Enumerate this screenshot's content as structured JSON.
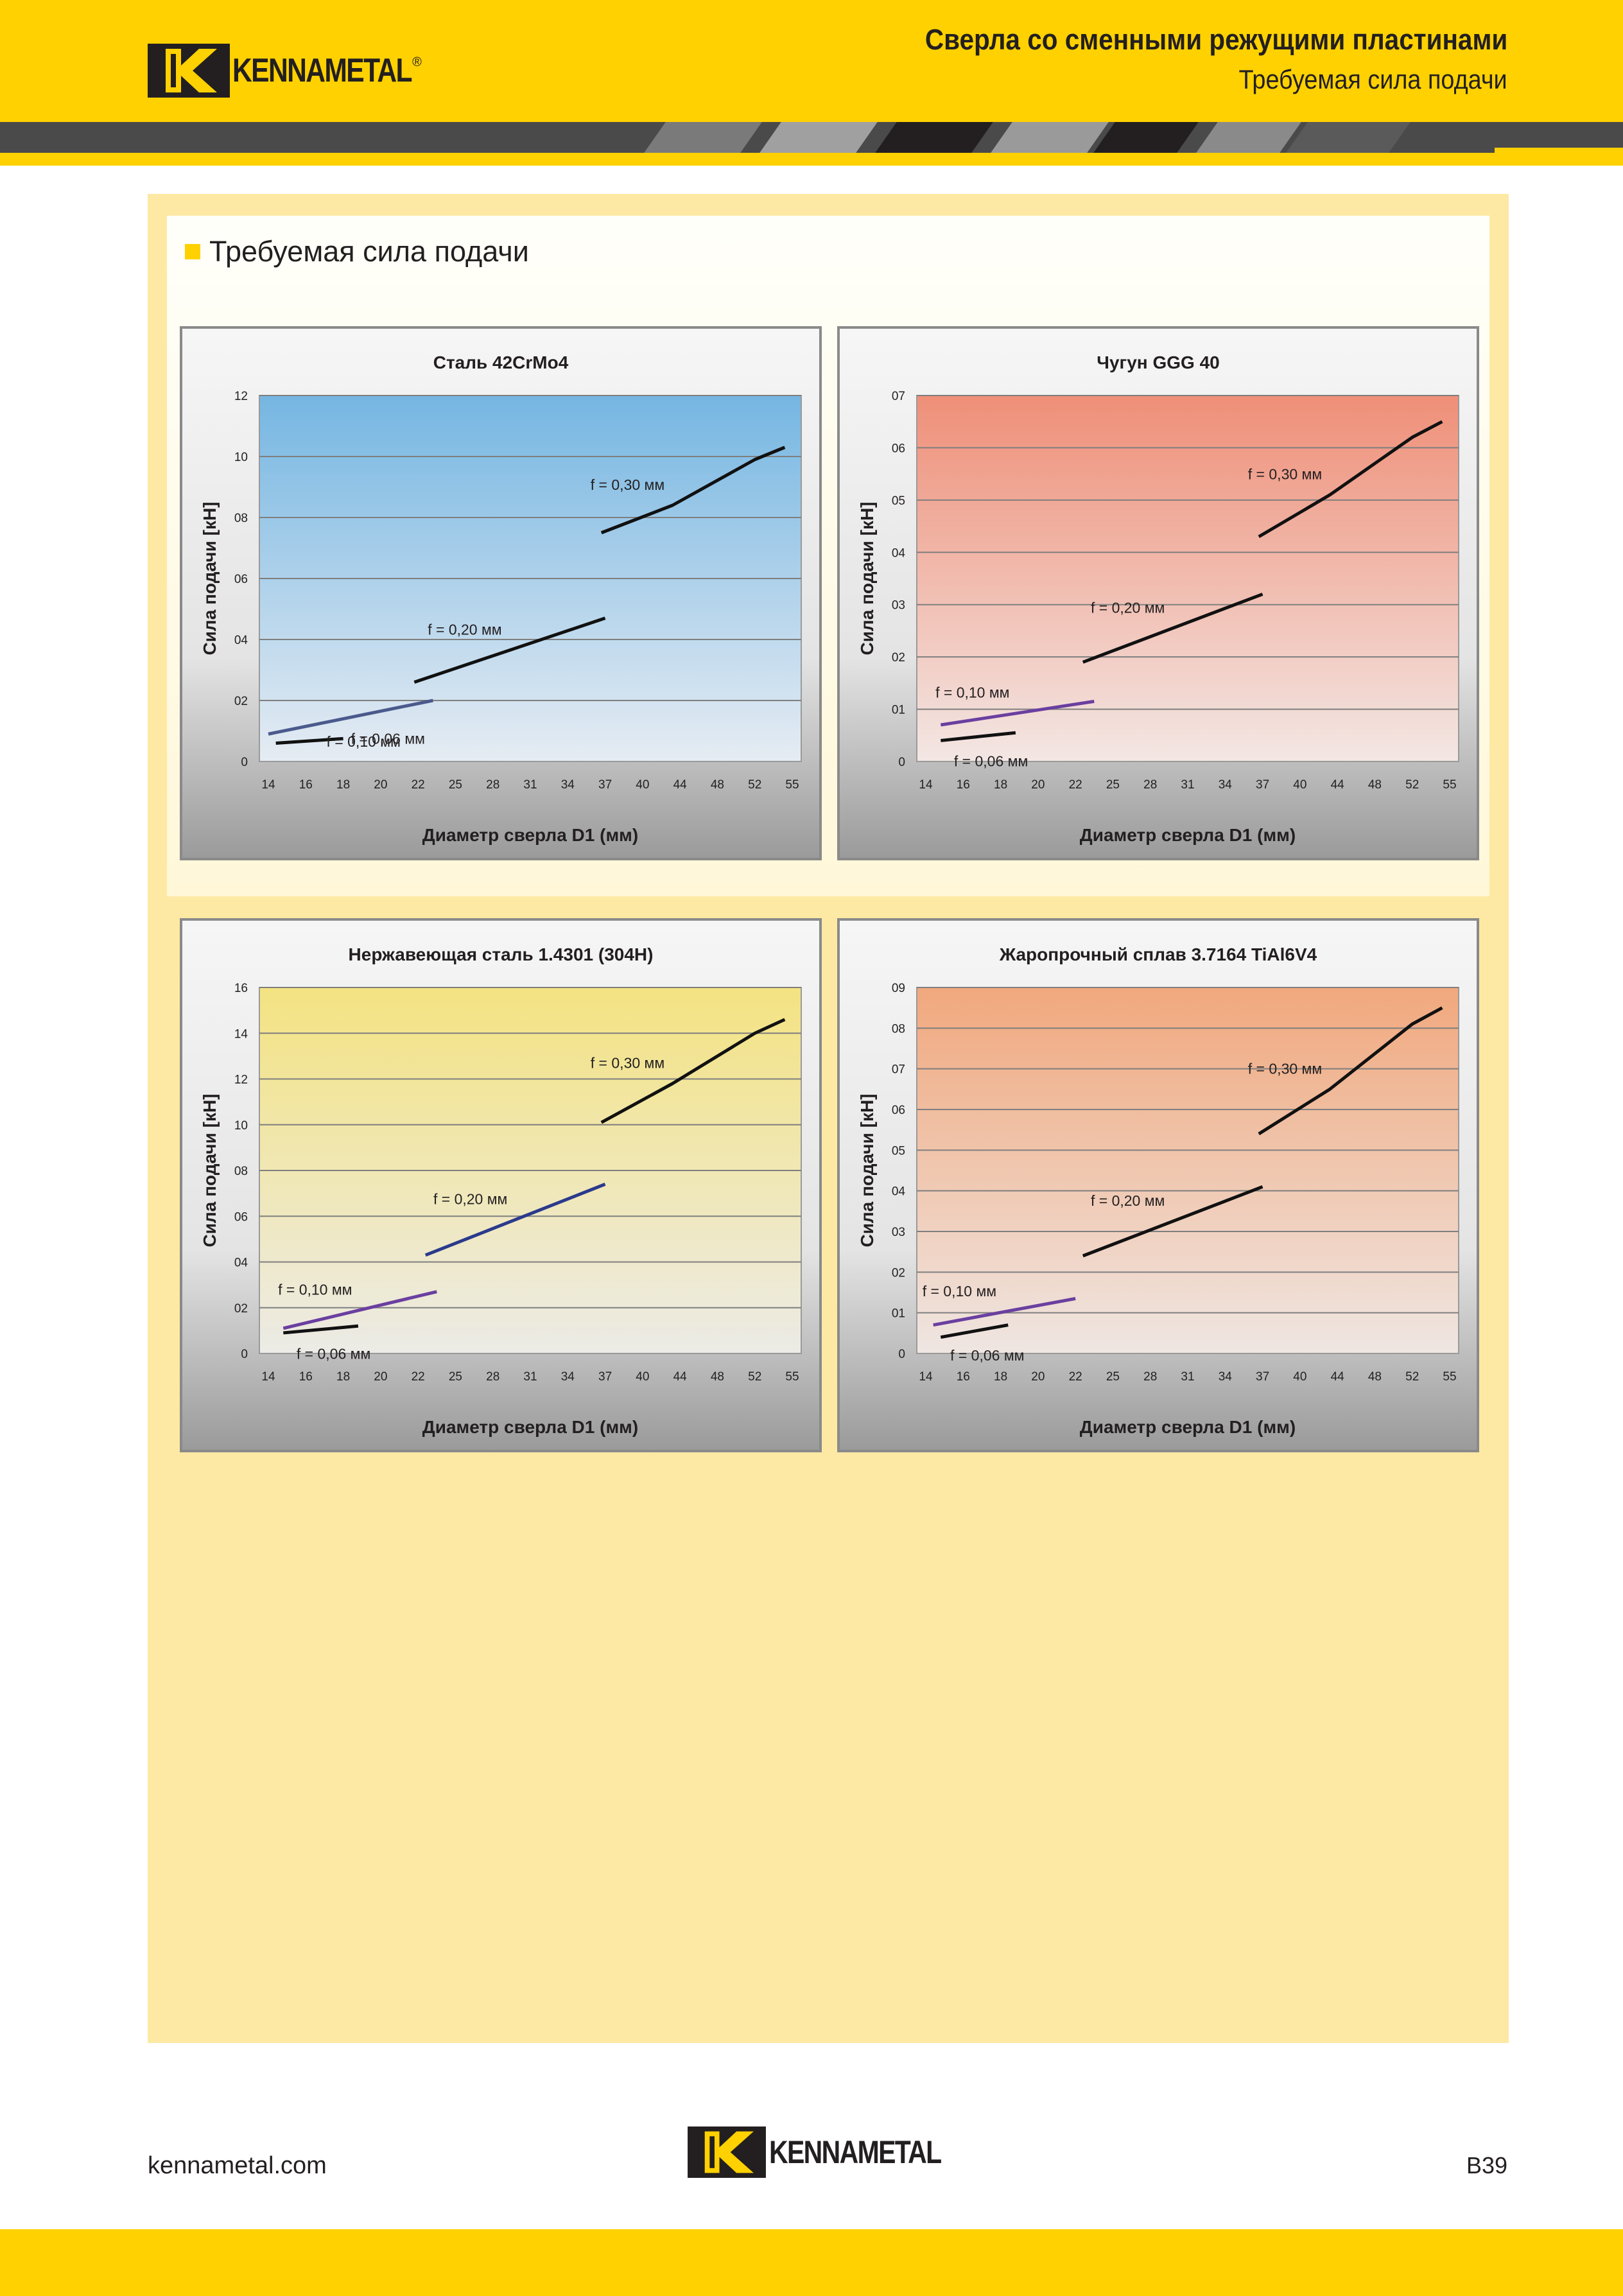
{
  "header": {
    "title": "Сверла со сменными режущими пластинами",
    "subtitle": "Требуемая сила подачи",
    "logo_text": "KENNAMETAL",
    "logo_mark": "®"
  },
  "section": {
    "title": "Требуемая сила подачи"
  },
  "footer": {
    "url": "kennametal.com",
    "page": "B39"
  },
  "colors": {
    "brand_yellow": "#ffd100",
    "stripe_dark": "#4a4a4a",
    "panel_bg": "#fee9a4"
  },
  "chart_data": [
    {
      "type": "line",
      "title": "Сталь 42CrMo4",
      "xlabel": "Диаметр сверла D1 (мм)",
      "ylabel": "Сила подачи [кН]",
      "x_ticks": [
        "14",
        "16",
        "18",
        "20",
        "22",
        "25",
        "28",
        "31",
        "34",
        "37",
        "40",
        "44",
        "48",
        "52",
        "55"
      ],
      "y_ticks": [
        "0",
        "02",
        "04",
        "06",
        "08",
        "10",
        "12"
      ],
      "ylim": [
        0,
        12
      ],
      "plot_gradient": [
        "#75b6e2",
        "#e6ecf3"
      ],
      "series": [
        {
          "name": "f = 0,06 мм",
          "color": "#111111",
          "label_side": "right",
          "points": [
            [
              0.2,
              0.6
            ],
            [
              2,
              0.75
            ]
          ]
        },
        {
          "name": "f = 0,10 мм",
          "color": "#4a5a8c",
          "label_side": "below",
          "points": [
            [
              0,
              0.9
            ],
            [
              4.4,
              2.0
            ]
          ]
        },
        {
          "name": "f = 0,20 мм",
          "color": "#111111",
          "label_side": "above",
          "points": [
            [
              3.9,
              2.6
            ],
            [
              9.0,
              4.7
            ]
          ]
        },
        {
          "name": "f = 0,30 мм",
          "color": "#111111",
          "label_side": "above",
          "points": [
            [
              8.9,
              7.5
            ],
            [
              10.8,
              8.4
            ],
            [
              13,
              9.9
            ],
            [
              13.8,
              10.3
            ]
          ]
        }
      ]
    },
    {
      "type": "line",
      "title": "Чугун GGG 40",
      "xlabel": "Диаметр сверла D1 (мм)",
      "ylabel": "Сила подачи [кН]",
      "x_ticks": [
        "14",
        "16",
        "18",
        "20",
        "22",
        "25",
        "28",
        "31",
        "34",
        "37",
        "40",
        "44",
        "48",
        "52",
        "55"
      ],
      "y_ticks": [
        "0",
        "01",
        "02",
        "03",
        "04",
        "05",
        "06",
        "07"
      ],
      "ylim": [
        0,
        7
      ],
      "plot_gradient": [
        "#ef8f78",
        "#f3e7e4"
      ],
      "series": [
        {
          "name": "f = 0,06 мм",
          "color": "#111111",
          "label_side": "below",
          "points": [
            [
              0.4,
              0.4
            ],
            [
              2.4,
              0.55
            ]
          ]
        },
        {
          "name": "f = 0,10 мм",
          "color": "#6a3fa0",
          "label_side": "above",
          "points": [
            [
              0.4,
              0.7
            ],
            [
              4.5,
              1.15
            ]
          ]
        },
        {
          "name": "f = 0,20 мм",
          "color": "#111111",
          "label_side": "above",
          "points": [
            [
              4.2,
              1.9
            ],
            [
              9.0,
              3.2
            ]
          ]
        },
        {
          "name": "f = 0,30 мм",
          "color": "#111111",
          "label_side": "above",
          "points": [
            [
              8.9,
              4.3
            ],
            [
              10.8,
              5.1
            ],
            [
              13,
              6.2
            ],
            [
              13.8,
              6.5
            ]
          ]
        }
      ]
    },
    {
      "type": "line",
      "title": "Нержавеющая сталь 1.4301 (304H)",
      "xlabel": "Диаметр сверла D1 (мм)",
      "ylabel": "Сила подачи [кН]",
      "x_ticks": [
        "14",
        "16",
        "18",
        "20",
        "22",
        "25",
        "28",
        "31",
        "34",
        "37",
        "40",
        "44",
        "48",
        "52",
        "55"
      ],
      "y_ticks": [
        "0",
        "02",
        "04",
        "06",
        "08",
        "10",
        "12",
        "14",
        "16"
      ],
      "ylim": [
        0,
        16
      ],
      "plot_gradient": [
        "#f4e382",
        "#ecebe6"
      ],
      "series": [
        {
          "name": "f = 0,06 мм",
          "color": "#111111",
          "label_side": "below",
          "points": [
            [
              0.4,
              0.9
            ],
            [
              2.4,
              1.2
            ]
          ]
        },
        {
          "name": "f = 0,10 мм",
          "color": "#6a3fa0",
          "label_side": "above",
          "points": [
            [
              0.4,
              1.1
            ],
            [
              4.5,
              2.7
            ]
          ]
        },
        {
          "name": "f = 0,20 мм",
          "color": "#2a3a8c",
          "label_side": "above",
          "points": [
            [
              4.2,
              4.3
            ],
            [
              9.0,
              7.4
            ]
          ]
        },
        {
          "name": "f = 0,30 мм",
          "color": "#111111",
          "label_side": "above",
          "points": [
            [
              8.9,
              10.1
            ],
            [
              10.8,
              11.8
            ],
            [
              13,
              14.0
            ],
            [
              13.8,
              14.6
            ]
          ]
        }
      ]
    },
    {
      "type": "line",
      "title": "Жаропрочный сплав 3.7164 TiAl6V4",
      "xlabel": "Диаметр сверла D1 (мм)",
      "ylabel": "Сила подачи [кН]",
      "x_ticks": [
        "14",
        "16",
        "18",
        "20",
        "22",
        "25",
        "28",
        "31",
        "34",
        "37",
        "40",
        "44",
        "48",
        "52",
        "55"
      ],
      "y_ticks": [
        "0",
        "01",
        "02",
        "03",
        "04",
        "05",
        "06",
        "07",
        "08",
        "09"
      ],
      "ylim": [
        0,
        9
      ],
      "plot_gradient": [
        "#f1a87d",
        "#efe6e2"
      ],
      "series": [
        {
          "name": "f = 0,06 мм",
          "color": "#111111",
          "label_side": "below",
          "points": [
            [
              0.4,
              0.4
            ],
            [
              2.2,
              0.7
            ]
          ]
        },
        {
          "name": "f = 0,10 мм",
          "color": "#6a3fa0",
          "label_side": "above",
          "points": [
            [
              0.2,
              0.7
            ],
            [
              4.0,
              1.35
            ]
          ]
        },
        {
          "name": "f = 0,20 мм",
          "color": "#111111",
          "label_side": "above",
          "points": [
            [
              4.2,
              2.4
            ],
            [
              9.0,
              4.1
            ]
          ]
        },
        {
          "name": "f = 0,30 мм",
          "color": "#111111",
          "label_side": "above",
          "points": [
            [
              8.9,
              5.4
            ],
            [
              10.8,
              6.5
            ],
            [
              13,
              8.1
            ],
            [
              13.8,
              8.5
            ]
          ]
        }
      ]
    }
  ]
}
